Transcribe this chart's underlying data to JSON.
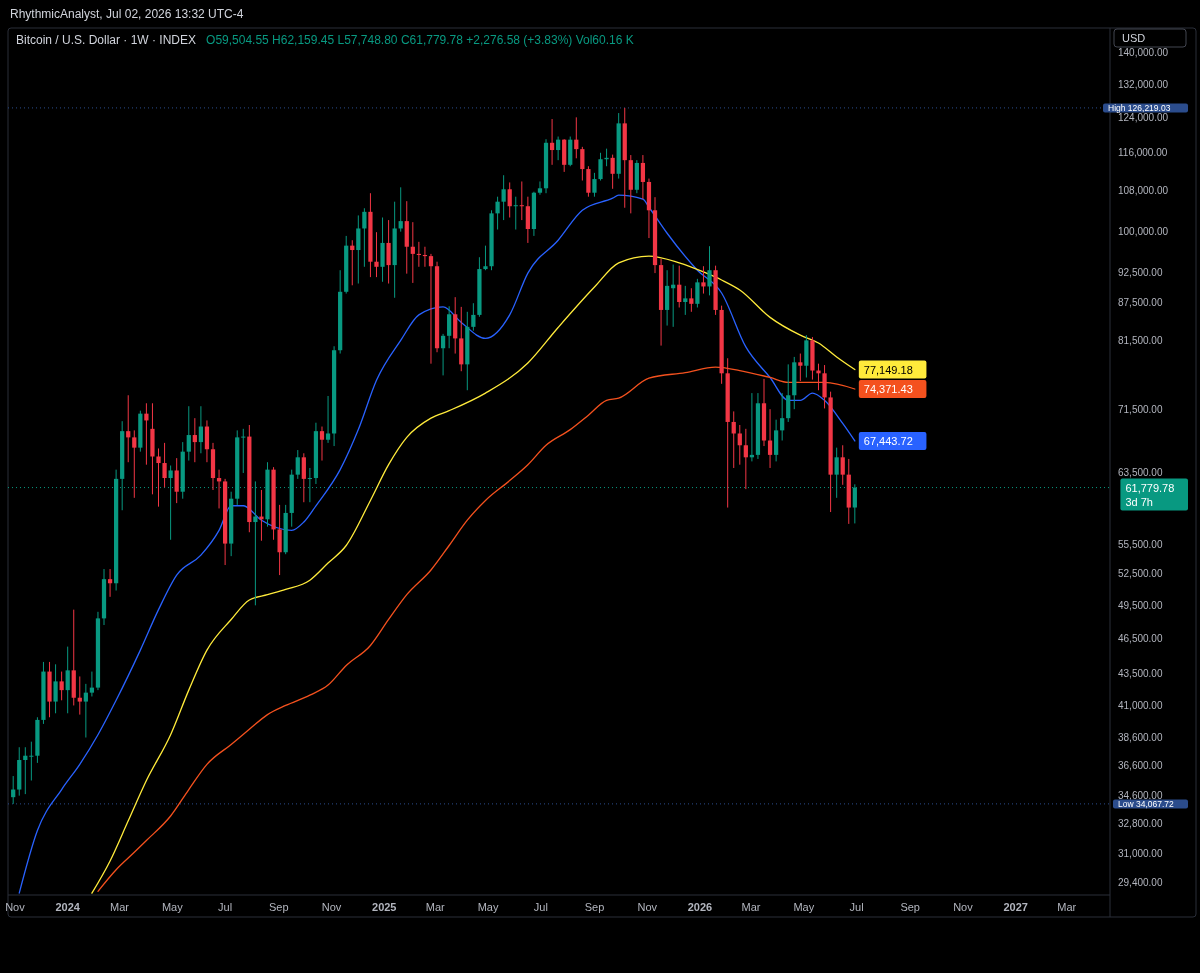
{
  "chart_data": {
    "type": "candlestick",
    "title": "Bitcoin / U.S. Dollar · 1W · INDEX",
    "subtitle": "O59,504.55 H62,159.45 L57,748.80 C61,779.78 +2,276.58 (+3.83%) Vol60.16 K",
    "ylabel": "USD",
    "annotations": [
      "RhythmicAnalyst, Jul 02, 2026 13:32 UTC-4"
    ],
    "log": "y",
    "xlim": [
      "2023-10-24",
      "2027-04-20"
    ],
    "ylim": [
      28700,
      146700
    ],
    "xticks": [
      {
        "value": "2023-11-01",
        "label": "Nov"
      },
      {
        "value": "2024-01-01",
        "label": "2024"
      },
      {
        "value": "2024-03-01",
        "label": "Mar"
      },
      {
        "value": "2024-05-01",
        "label": "May"
      },
      {
        "value": "2024-07-01",
        "label": "Jul"
      },
      {
        "value": "2024-09-01",
        "label": "Sep"
      },
      {
        "value": "2024-11-01",
        "label": "Nov"
      },
      {
        "value": "2025-01-01",
        "label": "2025"
      },
      {
        "value": "2025-03-01",
        "label": "Mar"
      },
      {
        "value": "2025-05-01",
        "label": "May"
      },
      {
        "value": "2025-07-01",
        "label": "Jul"
      },
      {
        "value": "2025-09-01",
        "label": "Sep"
      },
      {
        "value": "2025-11-01",
        "label": "Nov"
      },
      {
        "value": "2026-01-01",
        "label": "2026"
      },
      {
        "value": "2026-03-01",
        "label": "Mar"
      },
      {
        "value": "2026-05-01",
        "label": "May"
      },
      {
        "value": "2026-07-01",
        "label": "Jul"
      },
      {
        "value": "2026-09-01",
        "label": "Sep"
      },
      {
        "value": "2026-11-01",
        "label": "Nov"
      },
      {
        "value": "2027-01-01",
        "label": "2027"
      },
      {
        "value": "2027-03-01",
        "label": "Mar"
      }
    ],
    "yticks": [
      {
        "value": 140000,
        "label": "140,000.00"
      },
      {
        "value": 132000,
        "label": "132,000.00"
      },
      {
        "value": 124000,
        "label": "124,000.00"
      },
      {
        "value": 116000,
        "label": "116,000.00"
      },
      {
        "value": 108000,
        "label": "108,000.00"
      },
      {
        "value": 100000,
        "label": "100,000.00"
      },
      {
        "value": 92500,
        "label": "92,500.00"
      },
      {
        "value": 87500,
        "label": "87,500.00"
      },
      {
        "value": 81500,
        "label": "81,500.00"
      },
      {
        "value": 71500,
        "label": "71,500.00"
      },
      {
        "value": 63500,
        "label": "63,500.00"
      },
      {
        "value": 55500,
        "label": "55,500.00"
      },
      {
        "value": 52500,
        "label": "52,500.00"
      },
      {
        "value": 49500,
        "label": "49,500.00"
      },
      {
        "value": 46500,
        "label": "46,500.00"
      },
      {
        "value": 43500,
        "label": "43,500.00"
      },
      {
        "value": 41000,
        "label": "41,000.00"
      },
      {
        "value": 38600,
        "label": "38,600.00"
      },
      {
        "value": 36600,
        "label": "36,600.00"
      },
      {
        "value": 34600,
        "label": "34,600.00"
      },
      {
        "value": 32800,
        "label": "32,800.00"
      },
      {
        "value": 31000,
        "label": "31,000.00"
      },
      {
        "value": 29400,
        "label": "29,400.00"
      }
    ],
    "ref_lines": [
      {
        "axis": "y",
        "value": 126219.03,
        "label": "High 126,219.03",
        "color": "#2b4c8c",
        "line_style": "dotted"
      },
      {
        "axis": "y",
        "value": 34067.72,
        "label": "Low 34,067.72",
        "color": "#2b4c8c",
        "line_style": "dotted"
      },
      {
        "axis": "y",
        "value": 61779.78,
        "label": "61,779.78\n3d 7h",
        "color": "#089981",
        "line_style": "dotted"
      }
    ],
    "x": [
      "2023-10-30",
      "2023-11-06",
      "2023-11-13",
      "2023-11-20",
      "2023-11-27",
      "2023-12-04",
      "2023-12-11",
      "2023-12-18",
      "2023-12-25",
      "2024-01-01",
      "2024-01-08",
      "2024-01-15",
      "2024-01-22",
      "2024-01-29",
      "2024-02-05",
      "2024-02-12",
      "2024-02-19",
      "2024-02-26",
      "2024-03-04",
      "2024-03-11",
      "2024-03-18",
      "2024-03-25",
      "2024-04-01",
      "2024-04-08",
      "2024-04-15",
      "2024-04-22",
      "2024-04-29",
      "2024-05-06",
      "2024-05-13",
      "2024-05-20",
      "2024-05-27",
      "2024-06-03",
      "2024-06-10",
      "2024-06-17",
      "2024-06-24",
      "2024-07-01",
      "2024-07-08",
      "2024-07-15",
      "2024-07-22",
      "2024-07-29",
      "2024-08-05",
      "2024-08-12",
      "2024-08-19",
      "2024-08-26",
      "2024-09-02",
      "2024-09-09",
      "2024-09-16",
      "2024-09-23",
      "2024-09-30",
      "2024-10-07",
      "2024-10-14",
      "2024-10-21",
      "2024-10-28",
      "2024-11-04",
      "2024-11-11",
      "2024-11-18",
      "2024-11-25",
      "2024-12-02",
      "2024-12-09",
      "2024-12-16",
      "2024-12-23",
      "2024-12-30",
      "2025-01-06",
      "2025-01-13",
      "2025-01-20",
      "2025-01-27",
      "2025-02-03",
      "2025-02-10",
      "2025-02-17",
      "2025-02-24",
      "2025-03-03",
      "2025-03-10",
      "2025-03-17",
      "2025-03-24",
      "2025-03-31",
      "2025-04-07",
      "2025-04-14",
      "2025-04-21",
      "2025-04-28",
      "2025-05-05",
      "2025-05-12",
      "2025-05-19",
      "2025-05-26",
      "2025-06-02",
      "2025-06-09",
      "2025-06-16",
      "2025-06-23",
      "2025-06-30",
      "2025-07-07",
      "2025-07-14",
      "2025-07-21",
      "2025-07-28",
      "2025-08-04",
      "2025-08-11",
      "2025-08-18",
      "2025-08-25",
      "2025-09-01",
      "2025-09-08",
      "2025-09-15",
      "2025-09-22",
      "2025-09-29",
      "2025-10-06",
      "2025-10-13",
      "2025-10-20",
      "2025-10-27",
      "2025-11-03",
      "2025-11-10",
      "2025-11-17",
      "2025-11-24",
      "2025-12-01",
      "2025-12-08",
      "2025-12-15",
      "2025-12-22",
      "2025-12-29",
      "2026-01-05",
      "2026-01-12",
      "2026-01-19",
      "2026-01-26",
      "2026-02-02",
      "2026-02-09",
      "2026-02-16",
      "2026-02-23",
      "2026-03-02",
      "2026-03-09",
      "2026-03-16",
      "2026-03-23",
      "2026-03-30",
      "2026-04-06",
      "2026-04-13",
      "2026-04-20",
      "2026-04-27",
      "2026-05-04",
      "2026-05-11",
      "2026-05-18",
      "2026-05-25",
      "2026-06-01",
      "2026-06-08",
      "2026-06-15",
      "2026-06-22",
      "2026-06-29"
    ],
    "ohlc": [
      [
        34500,
        35900,
        34067.72,
        35000
      ],
      [
        35000,
        37900,
        34600,
        37000
      ],
      [
        37000,
        37900,
        34700,
        37300
      ],
      [
        37300,
        38300,
        35600,
        37300
      ],
      [
        37300,
        40100,
        36800,
        39900
      ],
      [
        39900,
        44500,
        39600,
        43700
      ],
      [
        43700,
        44500,
        40100,
        41300
      ],
      [
        41300,
        44300,
        40400,
        42900
      ],
      [
        42900,
        43700,
        41400,
        42200
      ],
      [
        42200,
        45800,
        40400,
        43800
      ],
      [
        43800,
        49100,
        41000,
        41600
      ],
      [
        41600,
        43300,
        40300,
        41300
      ],
      [
        41300,
        42700,
        38600,
        42000
      ],
      [
        42000,
        43700,
        41700,
        42400
      ],
      [
        42400,
        48900,
        42200,
        48300
      ],
      [
        48300,
        53000,
        47700,
        52000
      ],
      [
        52000,
        53000,
        50300,
        51600
      ],
      [
        51600,
        63900,
        50900,
        62800
      ],
      [
        62800,
        70000,
        59200,
        68700
      ],
      [
        68700,
        73500,
        64800,
        67900
      ],
      [
        67900,
        68800,
        60600,
        66600
      ],
      [
        66600,
        71400,
        66100,
        71000
      ],
      [
        71000,
        72400,
        64500,
        70100
      ],
      [
        69000,
        72400,
        61000,
        65500
      ],
      [
        65500,
        66500,
        59600,
        64700
      ],
      [
        64700,
        67200,
        61800,
        62900
      ],
      [
        62900,
        64400,
        56000,
        63800
      ],
      [
        63800,
        65300,
        60000,
        61300
      ],
      [
        61300,
        67300,
        60500,
        66100
      ],
      [
        66100,
        72000,
        65000,
        68200
      ],
      [
        68200,
        70400,
        64800,
        67300
      ],
      [
        67300,
        72000,
        65900,
        69300
      ],
      [
        69300,
        70100,
        64800,
        66400
      ],
      [
        66400,
        67200,
        61500,
        62900
      ],
      [
        62900,
        63900,
        59400,
        62500
      ],
      [
        62500,
        62800,
        53400,
        55600
      ],
      [
        55600,
        61300,
        54300,
        60500
      ],
      [
        60500,
        68800,
        59800,
        67900
      ],
      [
        67900,
        69000,
        63500,
        68000
      ],
      [
        68000,
        69500,
        56800,
        57900
      ],
      [
        57900,
        62500,
        49500,
        58500
      ],
      [
        58500,
        61500,
        55900,
        58200
      ],
      [
        58200,
        64800,
        57400,
        63900
      ],
      [
        63900,
        64200,
        56000,
        57100
      ],
      [
        57100,
        59800,
        52400,
        54700
      ],
      [
        54700,
        59800,
        54500,
        58900
      ],
      [
        58900,
        63900,
        57400,
        63300
      ],
      [
        63300,
        66300,
        62800,
        65400
      ],
      [
        65400,
        65900,
        60100,
        62800
      ],
      [
        62800,
        64100,
        60100,
        62900
      ],
      [
        62900,
        69800,
        62200,
        68700
      ],
      [
        68700,
        69300,
        65000,
        67600
      ],
      [
        67600,
        73400,
        67200,
        68400
      ],
      [
        68400,
        80600,
        66800,
        80000
      ],
      [
        80000,
        93000,
        79500,
        89300
      ],
      [
        89300,
        99200,
        89000,
        97400
      ],
      [
        97400,
        98400,
        90400,
        96600
      ],
      [
        96600,
        103100,
        90700,
        100600
      ],
      [
        100600,
        104500,
        93600,
        103800
      ],
      [
        103800,
        107500,
        91800,
        94500
      ],
      [
        94500,
        99900,
        91800,
        93600
      ],
      [
        93600,
        102700,
        91000,
        97900
      ],
      [
        97900,
        102200,
        90700,
        93900
      ],
      [
        93900,
        105800,
        88300,
        100600
      ],
      [
        100600,
        108700,
        100000,
        102000
      ],
      [
        102000,
        105900,
        92400,
        97200
      ],
      [
        97200,
        101800,
        90800,
        95900
      ],
      [
        95900,
        98100,
        93600,
        95700
      ],
      [
        95700,
        97200,
        93600,
        95500
      ],
      [
        95500,
        95900,
        78000,
        93700
      ],
      [
        93700,
        94500,
        79700,
        80300
      ],
      [
        80300,
        82500,
        76300,
        82200
      ],
      [
        82200,
        86900,
        80300,
        85600
      ],
      [
        85600,
        88400,
        79500,
        81800
      ],
      [
        81800,
        86800,
        76900,
        77900
      ],
      [
        77900,
        86000,
        74200,
        83600
      ],
      [
        83600,
        87400,
        83000,
        85500
      ],
      [
        85500,
        95300,
        85200,
        93200
      ],
      [
        93200,
        97400,
        93000,
        93700
      ],
      [
        93700,
        104100,
        93000,
        103500
      ],
      [
        103500,
        106800,
        100400,
        105800
      ],
      [
        105800,
        111200,
        102200,
        108300
      ],
      [
        108300,
        109700,
        102700,
        104900
      ],
      [
        104900,
        106800,
        100400,
        105100
      ],
      [
        105100,
        109900,
        102200,
        104900
      ],
      [
        104900,
        106800,
        97900,
        100500
      ],
      [
        100500,
        107800,
        99200,
        107600
      ],
      [
        107600,
        109900,
        107200,
        108500
      ],
      [
        108500,
        119000,
        107500,
        118200
      ],
      [
        118200,
        123600,
        113400,
        116600
      ],
      [
        116600,
        119600,
        114400,
        118900
      ],
      [
        118900,
        119000,
        111900,
        113400
      ],
      [
        113400,
        119600,
        113100,
        118900
      ],
      [
        118900,
        124000,
        114800,
        116800
      ],
      [
        116800,
        117300,
        110100,
        112500
      ],
      [
        112500,
        113100,
        106800,
        107600
      ],
      [
        107600,
        111700,
        106800,
        110400
      ],
      [
        110400,
        116000,
        110100,
        114600
      ],
      [
        114600,
        116900,
        113100,
        114900
      ],
      [
        114900,
        115600,
        108400,
        111500
      ],
      [
        111500,
        125000,
        110500,
        122600
      ],
      [
        122600,
        126219.03,
        104600,
        114400
      ],
      [
        114400,
        115500,
        103500,
        108200
      ],
      [
        108200,
        114400,
        107500,
        113800
      ],
      [
        113800,
        115500,
        106300,
        109800
      ],
      [
        109800,
        110500,
        98800,
        104100
      ],
      [
        104100,
        106700,
        92500,
        93900
      ],
      [
        93900,
        95000,
        80700,
        86300
      ],
      [
        86300,
        93000,
        83800,
        90300
      ],
      [
        89900,
        94000,
        83600,
        90500
      ],
      [
        90500,
        93800,
        86700,
        87600
      ],
      [
        87600,
        90300,
        85500,
        88200
      ],
      [
        88200,
        89900,
        86000,
        87300
      ],
      [
        87300,
        91500,
        86700,
        90900
      ],
      [
        90900,
        93700,
        89000,
        90200
      ],
      [
        90200,
        97300,
        88700,
        93000
      ],
      [
        93000,
        93800,
        85500,
        86300
      ],
      [
        86300,
        87000,
        75100,
        76600
      ],
      [
        76600,
        78800,
        59500,
        69900
      ],
      [
        69900,
        71300,
        64100,
        68400
      ],
      [
        68400,
        69500,
        64500,
        66900
      ],
      [
        66900,
        69000,
        61600,
        65400
      ],
      [
        65400,
        73800,
        64900,
        65700
      ],
      [
        65700,
        73800,
        65200,
        72400
      ],
      [
        72400,
        75800,
        66800,
        67500
      ],
      [
        67500,
        71600,
        64100,
        65700
      ],
      [
        65700,
        70200,
        64900,
        68800
      ],
      [
        68800,
        73800,
        67500,
        70400
      ],
      [
        70400,
        77900,
        69900,
        73500
      ],
      [
        73500,
        79000,
        71600,
        78200
      ],
      [
        78200,
        79500,
        75500,
        77700
      ],
      [
        77700,
        82300,
        76000,
        81500
      ],
      [
        81500,
        82000,
        75700,
        77000
      ],
      [
        77000,
        78000,
        74200,
        76600
      ],
      [
        76600,
        77800,
        71700,
        73200
      ],
      [
        73200,
        74000,
        59000,
        63300
      ],
      [
        63300,
        66600,
        60600,
        65400
      ],
      [
        65400,
        66900,
        62100,
        63300
      ],
      [
        63300,
        65200,
        57700,
        59500
      ],
      [
        59504.55,
        62159.45,
        57748.8,
        61779.78
      ]
    ],
    "series": [
      {
        "type": "line",
        "color": "#2962ff",
        "x": [
          "2023-11-06",
          "2023-11-27",
          "2023-12-25",
          "2024-01-15",
          "2024-02-05",
          "2024-02-26",
          "2024-03-25",
          "2024-04-15",
          "2024-05-06",
          "2024-06-03",
          "2024-06-24",
          "2024-07-08",
          "2024-07-22",
          "2024-08-12",
          "2024-09-16",
          "2024-09-30",
          "2024-10-14",
          "2024-11-11",
          "2024-12-02",
          "2024-12-23",
          "2025-01-20",
          "2025-02-10",
          "2025-03-10",
          "2025-03-31",
          "2025-04-28",
          "2025-05-26",
          "2025-06-16",
          "2025-07-21",
          "2025-08-18",
          "2025-09-22",
          "2025-09-29",
          "2025-10-27",
          "2025-11-03",
          "2025-11-24",
          "2025-12-29",
          "2026-01-26",
          "2026-02-23",
          "2026-03-23",
          "2026-04-13",
          "2026-04-27",
          "2026-05-11",
          "2026-05-25",
          "2026-06-15",
          "2026-06-29"
        ],
        "values": [
          28800,
          32400,
          35000,
          36700,
          38800,
          41400,
          45500,
          49100,
          52400,
          54400,
          57000,
          59700,
          59700,
          58100,
          57000,
          57900,
          59700,
          63900,
          68900,
          75600,
          81500,
          85500,
          86800,
          84300,
          81800,
          85500,
          92500,
          98400,
          104100,
          106500,
          107100,
          106300,
          104700,
          99700,
          93000,
          89100,
          80500,
          76000,
          72800,
          72800,
          73800,
          72800,
          69700,
          67443.72
        ],
        "value_labels": [
          null,
          null,
          null,
          null,
          null,
          null,
          null,
          null,
          null,
          null,
          null,
          null,
          null,
          null,
          null,
          null,
          null,
          null,
          null,
          null,
          null,
          null,
          null,
          null,
          null,
          null,
          null,
          null,
          null,
          null,
          null,
          null,
          null,
          null,
          null,
          null,
          null,
          null,
          null,
          null,
          null,
          null,
          null,
          "67,443.72"
        ]
      },
      {
        "type": "line",
        "color": "#ffeb3b",
        "x": [
          "2024-01-29",
          "2024-02-19",
          "2024-03-11",
          "2024-04-01",
          "2024-04-29",
          "2024-05-20",
          "2024-06-10",
          "2024-07-08",
          "2024-07-29",
          "2024-08-19",
          "2024-09-09",
          "2024-10-07",
          "2024-10-28",
          "2024-11-18",
          "2024-12-16",
          "2025-01-06",
          "2025-01-27",
          "2025-02-24",
          "2025-03-17",
          "2025-04-28",
          "2025-06-16",
          "2025-07-21",
          "2025-09-01",
          "2025-09-29",
          "2025-11-03",
          "2025-12-08",
          "2026-01-05",
          "2026-01-26",
          "2026-02-16",
          "2026-03-23",
          "2026-04-27",
          "2026-05-18",
          "2026-06-08",
          "2026-06-29"
        ],
        "values": [
          28800,
          30600,
          33000,
          35600,
          38800,
          42200,
          45500,
          48200,
          50000,
          50500,
          51000,
          51900,
          53600,
          55400,
          60300,
          64500,
          67900,
          70400,
          71400,
          73800,
          78100,
          83500,
          90100,
          94300,
          95500,
          94300,
          92700,
          91300,
          89600,
          85100,
          82300,
          81100,
          79000,
          77149.18
        ],
        "value_labels": [
          null,
          null,
          null,
          null,
          null,
          null,
          null,
          null,
          null,
          null,
          null,
          null,
          null,
          null,
          null,
          null,
          null,
          null,
          null,
          null,
          null,
          null,
          null,
          null,
          null,
          null,
          null,
          null,
          null,
          null,
          null,
          null,
          null,
          "77,149.18"
        ]
      },
      {
        "type": "line",
        "color": "#f4511e",
        "x": [
          "2024-02-05",
          "2024-02-26",
          "2024-03-18",
          "2024-04-01",
          "2024-04-29",
          "2024-05-20",
          "2024-06-10",
          "2024-07-08",
          "2024-07-29",
          "2024-08-19",
          "2024-09-09",
          "2024-10-07",
          "2024-10-28",
          "2024-11-18",
          "2024-12-16",
          "2025-01-06",
          "2025-01-27",
          "2025-02-24",
          "2025-03-17",
          "2025-04-07",
          "2025-04-28",
          "2025-05-26",
          "2025-06-16",
          "2025-07-07",
          "2025-08-04",
          "2025-08-25",
          "2025-09-15",
          "2025-09-29",
          "2025-11-03",
          "2025-12-15",
          "2026-01-19",
          "2026-02-16",
          "2026-03-23",
          "2026-04-13",
          "2026-05-25",
          "2026-06-29"
        ],
        "values": [
          28900,
          30100,
          31100,
          31800,
          33300,
          35000,
          36700,
          38100,
          39200,
          40300,
          41000,
          41800,
          42600,
          44200,
          45900,
          48200,
          50500,
          52900,
          55400,
          58100,
          60300,
          62600,
          64500,
          66900,
          68900,
          70800,
          72800,
          73100,
          75900,
          76700,
          77500,
          77000,
          76000,
          75300,
          75300,
          74371.43
        ],
        "value_labels": [
          null,
          null,
          null,
          null,
          null,
          null,
          null,
          null,
          null,
          null,
          null,
          null,
          null,
          null,
          null,
          null,
          null,
          null,
          null,
          null,
          null,
          null,
          null,
          null,
          null,
          null,
          null,
          null,
          null,
          null,
          null,
          null,
          null,
          null,
          null,
          "74,371.43"
        ]
      }
    ]
  }
}
